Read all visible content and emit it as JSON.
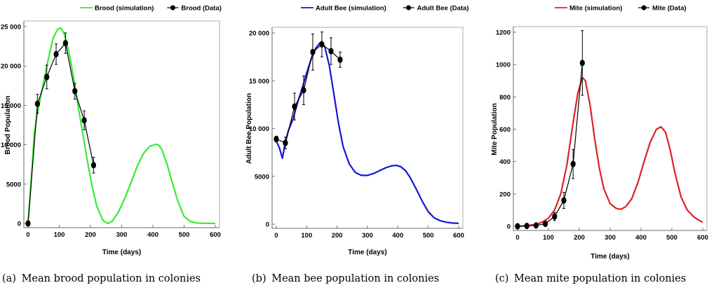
{
  "chart_data": [
    {
      "type": "line",
      "xlabel": "Time (days)",
      "ylabel": "Brood Population",
      "xlim": [
        0,
        600
      ],
      "ylim": [
        0,
        25000
      ],
      "xticks": [
        0,
        100,
        200,
        300,
        400,
        500,
        600
      ],
      "yticks": [
        0,
        5000,
        10000,
        15000,
        20000,
        25000
      ],
      "ytick_labels": [
        "0",
        "5000",
        "10 000",
        "15 000",
        "20 000",
        "25 000"
      ],
      "legend_position": "top",
      "grid": false,
      "series": [
        {
          "name": "Brood (simulation)",
          "color": "#33ee33",
          "style": "line",
          "x": [
            0,
            10,
            20,
            30,
            45,
            60,
            80,
            95,
            105,
            115,
            130,
            145,
            160,
            175,
            190,
            205,
            220,
            240,
            255,
            270,
            290,
            310,
            330,
            350,
            370,
            390,
            410,
            420,
            430,
            445,
            460,
            480,
            500,
            520,
            540,
            560,
            580,
            600
          ],
          "y": [
            0,
            5500,
            11500,
            14000,
            17000,
            20000,
            23500,
            24700,
            24800,
            24200,
            22000,
            18800,
            15000,
            11500,
            8000,
            4800,
            2200,
            400,
            0,
            300,
            1500,
            3200,
            5200,
            7300,
            8900,
            9800,
            10050,
            9900,
            9300,
            7600,
            5500,
            2800,
            900,
            250,
            60,
            20,
            5,
            0
          ]
        },
        {
          "name": "Brood (Data)",
          "color": "#000000",
          "style": "line-marker",
          "x": [
            0,
            30,
            60,
            90,
            120,
            150,
            180,
            210
          ],
          "y": [
            0,
            15200,
            18600,
            21500,
            22900,
            16800,
            13100,
            7400
          ],
          "err": [
            300,
            1200,
            1500,
            1300,
            1300,
            1000,
            1200,
            1000
          ]
        }
      ]
    },
    {
      "type": "line",
      "xlabel": "Time (days)",
      "ylabel": "Adult Bee Population",
      "xlim": [
        0,
        600
      ],
      "ylim": [
        0,
        20000
      ],
      "xticks": [
        0,
        100,
        200,
        300,
        400,
        500,
        600
      ],
      "yticks": [
        0,
        5000,
        10000,
        15000,
        20000
      ],
      "ytick_labels": [
        "0",
        "5000",
        "10 000",
        "15 000",
        "20 000"
      ],
      "legend_position": "top",
      "grid": false,
      "series": [
        {
          "name": "Adult Bee (simulation)",
          "color": "#1515d8",
          "style": "line",
          "x": [
            0,
            10,
            20,
            30,
            40,
            55,
            70,
            85,
            100,
            115,
            130,
            145,
            150,
            160,
            175,
            190,
            205,
            220,
            240,
            260,
            280,
            300,
            320,
            340,
            360,
            380,
            395,
            410,
            425,
            440,
            460,
            480,
            500,
            520,
            540,
            560,
            580,
            600
          ],
          "y": [
            8700,
            8000,
            6900,
            8600,
            9800,
            11000,
            12700,
            14200,
            15800,
            17300,
            18400,
            19000,
            19100,
            18500,
            16500,
            13500,
            10500,
            8100,
            6300,
            5400,
            5100,
            5100,
            5300,
            5600,
            5900,
            6100,
            6150,
            6000,
            5600,
            4900,
            3700,
            2400,
            1300,
            650,
            350,
            200,
            120,
            80
          ]
        },
        {
          "name": "Adult Bee (Data)",
          "color": "#000000",
          "style": "line-marker",
          "x": [
            0,
            30,
            60,
            90,
            120,
            150,
            180,
            210
          ],
          "y": [
            8900,
            8500,
            12300,
            14000,
            18000,
            18800,
            18100,
            17200
          ],
          "err": [
            300,
            600,
            1400,
            1500,
            1900,
            1300,
            1400,
            800
          ]
        }
      ]
    },
    {
      "type": "line",
      "xlabel": "Time (days)",
      "ylabel": "Mite Population",
      "xlim": [
        0,
        600
      ],
      "ylim": [
        0,
        1200
      ],
      "xticks": [
        0,
        100,
        200,
        300,
        400,
        500,
        600
      ],
      "yticks": [
        0,
        200,
        400,
        600,
        800,
        1000,
        1200
      ],
      "ytick_labels": [
        "0",
        "200",
        "400",
        "600",
        "800",
        "1000",
        "1200"
      ],
      "legend_position": "top",
      "grid": false,
      "series": [
        {
          "name": "Mite (simulation)",
          "color": "#dd2222",
          "style": "line",
          "x": [
            0,
            20,
            40,
            60,
            80,
            100,
            120,
            140,
            160,
            180,
            195,
            210,
            220,
            235,
            250,
            265,
            280,
            300,
            320,
            335,
            350,
            370,
            390,
            410,
            430,
            450,
            465,
            480,
            495,
            510,
            530,
            550,
            570,
            585,
            600
          ],
          "y": [
            0,
            2,
            6,
            12,
            25,
            50,
            100,
            200,
            380,
            640,
            820,
            920,
            900,
            750,
            540,
            360,
            230,
            140,
            110,
            105,
            120,
            170,
            270,
            400,
            520,
            600,
            615,
            580,
            470,
            330,
            180,
            100,
            60,
            40,
            25
          ]
        },
        {
          "name": "Mite (Data)",
          "color": "#000000",
          "style": "line-marker",
          "x": [
            0,
            30,
            60,
            90,
            120,
            150,
            180,
            210
          ],
          "y": [
            0,
            2,
            5,
            15,
            60,
            160,
            385,
            1010
          ],
          "err": [
            10,
            10,
            12,
            15,
            25,
            50,
            90,
            200
          ]
        }
      ]
    }
  ],
  "captions": [
    {
      "tag": "(a)",
      "text": "Mean brood population in colonies"
    },
    {
      "tag": "(b)",
      "text": "Mean bee population in colonies"
    },
    {
      "tag": "(c)",
      "text": "Mean mite population in colonies"
    }
  ]
}
